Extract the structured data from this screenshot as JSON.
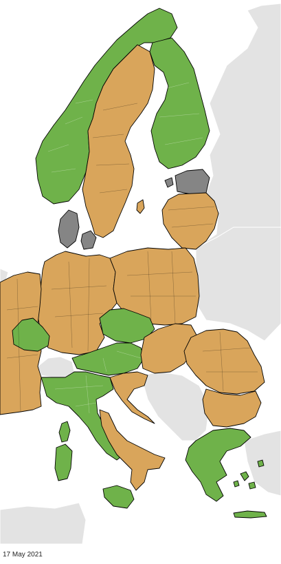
{
  "date": "17 May 2021",
  "legend_colors": {
    "green": "#6fb24a",
    "orange": "#d9a55b",
    "grey": "#858585",
    "non_member": "#e3e3e3"
  },
  "regions": [
    {
      "id": "norway",
      "status": "green"
    },
    {
      "id": "sweden",
      "status": "orange"
    },
    {
      "id": "finland",
      "status": "green"
    },
    {
      "id": "estonia",
      "status": "grey"
    },
    {
      "id": "latvia-lithuania",
      "status": "orange"
    },
    {
      "id": "denmark",
      "status": "grey"
    },
    {
      "id": "germany",
      "status": "orange"
    },
    {
      "id": "poland",
      "status": "orange"
    },
    {
      "id": "czechia",
      "status": "green"
    },
    {
      "id": "austria",
      "status": "green"
    },
    {
      "id": "slovakia-hungary",
      "status": "orange"
    },
    {
      "id": "romania",
      "status": "orange"
    },
    {
      "id": "bulgaria",
      "status": "orange"
    },
    {
      "id": "france",
      "status": "orange"
    },
    {
      "id": "france-east",
      "status": "green"
    },
    {
      "id": "italy",
      "status": "green"
    },
    {
      "id": "italy-south",
      "status": "orange"
    },
    {
      "id": "greece",
      "status": "green"
    },
    {
      "id": "croatia",
      "status": "orange"
    }
  ]
}
